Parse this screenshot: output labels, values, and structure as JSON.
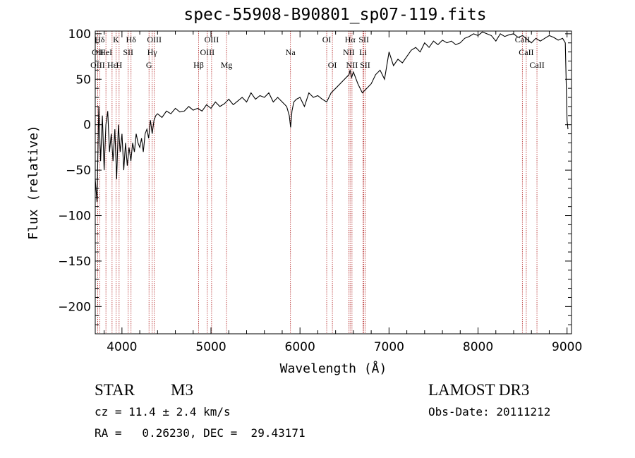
{
  "chart_data": {
    "type": "line",
    "title": "spec-55908-B90801_sp07-119.fits",
    "xlabel": "Wavelength (Å)",
    "ylabel": "Flux (relative)",
    "xlim": [
      3700,
      9050
    ],
    "ylim": [
      -230,
      103
    ],
    "xticks": [
      4000,
      5000,
      6000,
      7000,
      8000,
      9000
    ],
    "yticks": [
      -200,
      -150,
      -100,
      -50,
      0,
      50,
      100
    ],
    "series": [
      {
        "x": [
          3700,
          3720,
          3740,
          3760,
          3780,
          3800,
          3820,
          3840,
          3860,
          3880,
          3900,
          3920,
          3940,
          3960,
          3980,
          4000,
          4020,
          4040,
          4060,
          4080,
          4100,
          4120,
          4140,
          4160,
          4180,
          4200,
          4220,
          4240,
          4260,
          4280,
          4300,
          4320,
          4340,
          4360,
          4380,
          4400,
          4450,
          4500,
          4550,
          4600,
          4650,
          4700,
          4750,
          4800,
          4850,
          4900,
          4950,
          5000,
          5050,
          5100,
          5150,
          5200,
          5250,
          5300,
          5350,
          5400,
          5450,
          5500,
          5550,
          5600,
          5650,
          5700,
          5750,
          5800,
          5850,
          5880,
          5895,
          5910,
          5930,
          5960,
          6000,
          6050,
          6100,
          6150,
          6200,
          6250,
          6300,
          6350,
          6400,
          6450,
          6500,
          6550,
          6563,
          6580,
          6600,
          6650,
          6700,
          6750,
          6800,
          6850,
          6900,
          6950,
          7000,
          7050,
          7100,
          7150,
          7200,
          7250,
          7300,
          7350,
          7400,
          7450,
          7500,
          7550,
          7600,
          7650,
          7700,
          7750,
          7800,
          7850,
          7900,
          7950,
          8000,
          8050,
          8100,
          8150,
          8200,
          8250,
          8300,
          8350,
          8400,
          8450,
          8500,
          8550,
          8600,
          8650,
          8700,
          8750,
          8800,
          8850,
          8900,
          8950,
          8980,
          9000,
          9010
        ],
        "y": [
          -60,
          -85,
          20,
          -40,
          10,
          -50,
          0,
          15,
          -30,
          -10,
          -40,
          -5,
          -60,
          0,
          -30,
          -10,
          -50,
          -20,
          -45,
          -25,
          -40,
          -20,
          -30,
          -10,
          -20,
          -25,
          -15,
          -30,
          -10,
          -5,
          -15,
          5,
          -10,
          5,
          10,
          12,
          8,
          15,
          12,
          18,
          14,
          15,
          20,
          16,
          18,
          15,
          22,
          18,
          25,
          20,
          23,
          28,
          22,
          26,
          30,
          25,
          35,
          28,
          32,
          30,
          35,
          25,
          30,
          25,
          20,
          10,
          -3,
          15,
          25,
          28,
          30,
          20,
          35,
          30,
          32,
          28,
          25,
          35,
          40,
          45,
          50,
          55,
          60,
          52,
          58,
          45,
          35,
          40,
          45,
          55,
          60,
          50,
          80,
          65,
          72,
          68,
          75,
          82,
          85,
          80,
          90,
          85,
          92,
          88,
          93,
          90,
          92,
          88,
          90,
          95,
          97,
          100,
          98,
          102,
          100,
          98,
          92,
          100,
          97,
          99,
          100,
          96,
          98,
          94,
          90,
          95,
          92,
          95,
          98,
          96,
          93,
          95,
          90,
          5,
          -5
        ],
        "name": ""
      }
    ],
    "lines": [
      {
        "label": "Hδ",
        "x": 3750,
        "row": 0
      },
      {
        "label": "K",
        "x": 3934,
        "row": 0
      },
      {
        "label": "Hδ",
        "x": 4102,
        "row": 0
      },
      {
        "label": "OIII",
        "x": 4363,
        "row": 0
      },
      {
        "label": "OIII",
        "x": 5007,
        "row": 0
      },
      {
        "label": "OI",
        "x": 6300,
        "row": 0
      },
      {
        "label": "Hα",
        "x": 6563,
        "row": 0
      },
      {
        "label": "SII",
        "x": 6717,
        "row": 0
      },
      {
        "label": "CaII",
        "x": 8498,
        "row": 0
      },
      {
        "label": "OII",
        "x": 3727,
        "row": 1
      },
      {
        "label": "HeI",
        "x": 3820,
        "row": 1
      },
      {
        "label": "SII",
        "x": 4070,
        "row": 1
      },
      {
        "label": "Hγ",
        "x": 4340,
        "row": 1
      },
      {
        "label": "OIII",
        "x": 4959,
        "row": 1
      },
      {
        "label": "Na",
        "x": 5893,
        "row": 1
      },
      {
        "label": "NII",
        "x": 6548,
        "row": 1
      },
      {
        "label": "Li",
        "x": 6708,
        "row": 1
      },
      {
        "label": "CaII",
        "x": 8542,
        "row": 1
      },
      {
        "label": "OIII",
        "x": 3727,
        "row": 2
      },
      {
        "label": "Hε",
        "x": 3889,
        "row": 2
      },
      {
        "label": "H",
        "x": 3968,
        "row": 2
      },
      {
        "label": "G",
        "x": 4304,
        "row": 2
      },
      {
        "label": "Hβ",
        "x": 4861,
        "row": 2
      },
      {
        "label": "Mg",
        "x": 5175,
        "row": 2
      },
      {
        "label": "OI",
        "x": 6364,
        "row": 2
      },
      {
        "label": "NII",
        "x": 6584,
        "row": 2
      },
      {
        "label": "SII",
        "x": 6731,
        "row": 2
      },
      {
        "label": "CaII",
        "x": 8662,
        "row": 2
      }
    ]
  },
  "info": {
    "object_class": "STAR",
    "subclass": "M3",
    "survey": "LAMOST DR3",
    "cz": "cz = 11.4 ± 2.4 km/s",
    "obs_date": "Obs-Date: 20111212",
    "coords": "RA =   0.26230, DEC =  29.43171"
  }
}
